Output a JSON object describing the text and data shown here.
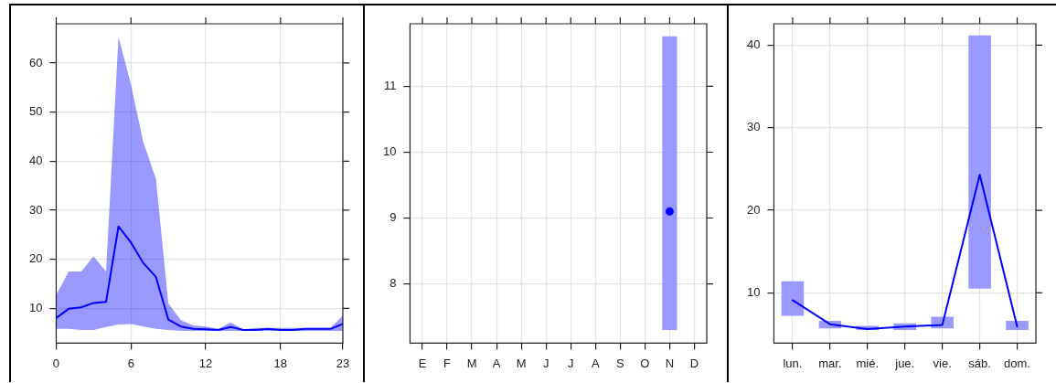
{
  "chart_data": [
    {
      "type": "line",
      "x": [
        0,
        1,
        2,
        3,
        4,
        5,
        6,
        7,
        8,
        9,
        10,
        11,
        12,
        13,
        14,
        15,
        16,
        17,
        18,
        19,
        20,
        21,
        22,
        23
      ],
      "series": [
        {
          "color": "#0000ff",
          "values": [
            8.0,
            9.9,
            10.2,
            11.1,
            11.3,
            26.7,
            23.4,
            19.2,
            16.4,
            7.7,
            6.3,
            5.8,
            5.7,
            5.6,
            6.2,
            5.6,
            5.6,
            5.8,
            5.6,
            5.6,
            5.8,
            5.8,
            5.8,
            6.8
          ],
          "lower": [
            5.8,
            5.8,
            5.6,
            5.6,
            6.2,
            6.7,
            6.8,
            6.3,
            5.8,
            5.6,
            5.4,
            5.4,
            5.4,
            5.4,
            5.4,
            5.4,
            5.4,
            5.4,
            5.4,
            5.4,
            5.4,
            5.4,
            5.4,
            5.4
          ],
          "upper": [
            12.7,
            17.5,
            17.5,
            20.6,
            17.5,
            65.4,
            55.6,
            43.8,
            36.4,
            11.0,
            7.6,
            6.5,
            6.3,
            5.8,
            7.1,
            5.7,
            6.0,
            6.0,
            6.0,
            6.0,
            6.0,
            6.0,
            6.0,
            8.5
          ]
        }
      ],
      "xlim": [
        0,
        23
      ],
      "xticks": [
        0,
        6,
        12,
        18,
        23
      ],
      "ylim": [
        2.9,
        68
      ],
      "yticks": [
        10,
        20,
        30,
        40,
        50,
        60
      ],
      "grid": true
    },
    {
      "type": "bar",
      "categories": [
        "E",
        "F",
        "M",
        "A",
        "M",
        "J",
        "J",
        "A",
        "S",
        "O",
        "N",
        "D"
      ],
      "series": [
        {
          "type": "bar",
          "color": "#9999ff",
          "values": [
            null,
            null,
            null,
            null,
            null,
            null,
            null,
            null,
            null,
            null,
            4.46,
            null
          ],
          "base": [
            null,
            null,
            null,
            null,
            null,
            null,
            null,
            null,
            null,
            null,
            7.3,
            null
          ]
        },
        {
          "type": "line",
          "color": "#0000ff",
          "values": [
            null,
            null,
            null,
            null,
            null,
            null,
            null,
            null,
            null,
            null,
            9.1,
            null
          ]
        }
      ],
      "ylim": [
        7.1,
        11.95
      ],
      "yticks": [
        8,
        9,
        10,
        11
      ],
      "grid": true,
      "marker": "circle"
    },
    {
      "type": "bar",
      "categories": [
        "lun.",
        "mar.",
        "mié.",
        "jue.",
        "vie.",
        "sáb.",
        "dom."
      ],
      "series": [
        {
          "type": "bar",
          "color": "#9999ff",
          "values": [
            4.2,
            0.9,
            0.5,
            0.8,
            1.4,
            30.7,
            1.1
          ],
          "base": [
            7.2,
            5.7,
            5.5,
            5.5,
            5.7,
            10.5,
            5.5
          ]
        },
        {
          "type": "line",
          "color": "#0000ff",
          "values": [
            9.1,
            6.2,
            5.6,
            5.9,
            6.1,
            24.3,
            5.9
          ]
        }
      ],
      "ylim": [
        3.9,
        42.6
      ],
      "yticks": [
        10,
        20,
        30,
        40
      ],
      "grid": true
    }
  ]
}
